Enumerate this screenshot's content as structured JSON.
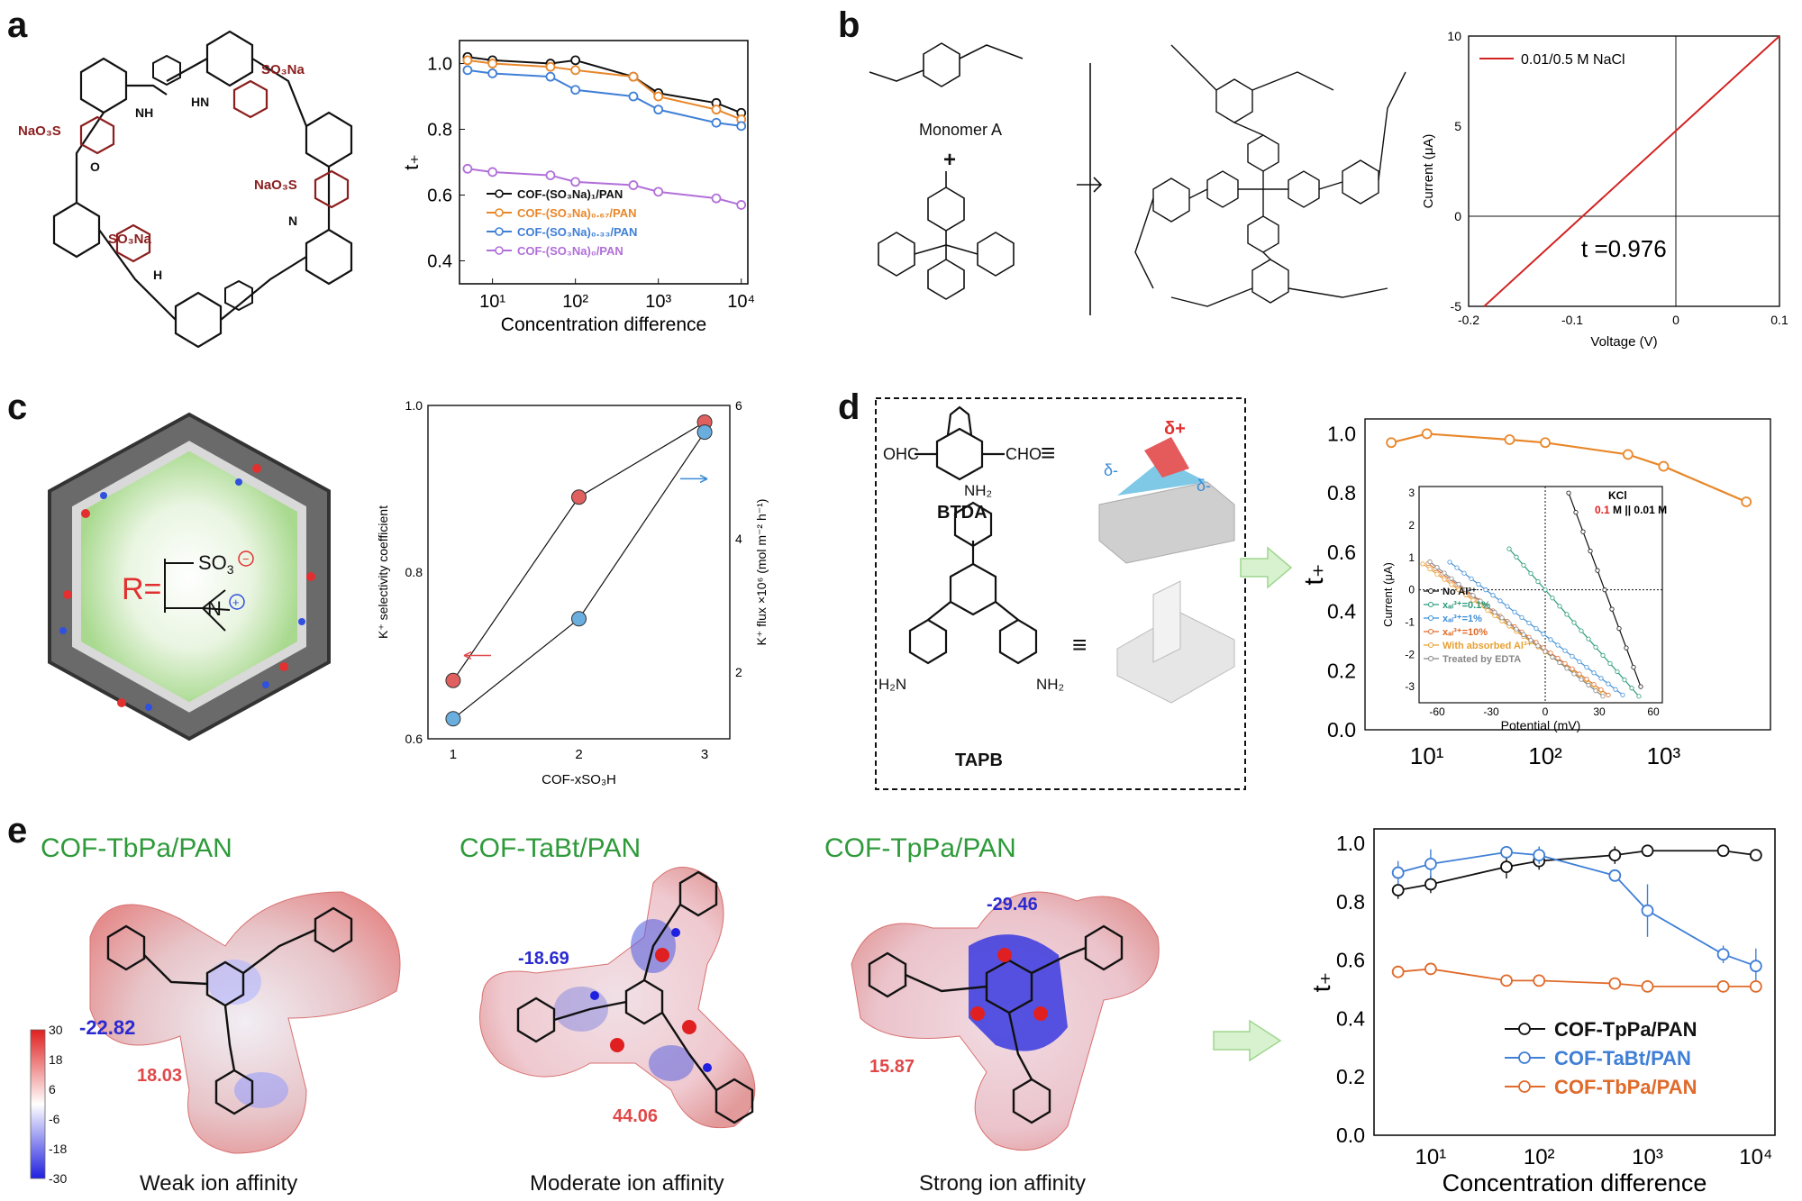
{
  "panels": {
    "a": {
      "letter": "a",
      "chem_labels": {
        "so3na_1": "SO₃Na",
        "so3na_2": "SO₃Na",
        "naso3_1": "NaO₃S",
        "naso3_2": "NaO₃S",
        "nh": "NH",
        "hn": "HN",
        "n": "N",
        "h": "H",
        "o": "O"
      },
      "chart": {
        "ylabel": "t₊",
        "xlabel": "Concentration difference",
        "yticks": [
          "0.4",
          "0.6",
          "0.8",
          "1.0"
        ],
        "xticks": [
          "10¹",
          "10²",
          "10³",
          "10⁴"
        ]
      },
      "legend": [
        "COF-(SO₃Na)₁/PAN",
        "COF-(SO₃Na)₀.₆₇/PAN",
        "COF-(SO₃Na)₀.₃₃/PAN",
        "COF-(SO₃Na)₀/PAN"
      ]
    },
    "b": {
      "letter": "b",
      "monomer_label": "Monomer A",
      "plus": "+",
      "chart": {
        "xlabel": "Voltage (V)",
        "ylabel": "Current (μA)",
        "xticks": [
          "-0.2",
          "-0.1",
          "0",
          "0.1"
        ],
        "yticks": [
          "-5",
          "0",
          "5",
          "10"
        ],
        "legend": "0.01/0.5 M NaCl",
        "annotation": "t  =0.976"
      }
    },
    "c": {
      "letter": "c",
      "r_label": "R=",
      "chart": {
        "xlabel": "COF-xSO₃H",
        "ylabel_left": "K⁺ selectivity coefficient",
        "ylabel_right": "K⁺ flux ×10⁶ (mol m⁻² h⁻¹)",
        "xticks": [
          "1",
          "2",
          "3"
        ],
        "yticks_left": [
          "0.6",
          "0.8",
          "1.0"
        ],
        "yticks_right": [
          "2",
          "4",
          "6"
        ]
      }
    },
    "d": {
      "letter": "d",
      "btda_label": "BTDA",
      "tapb_label": "TAPB",
      "ohc": "OHC",
      "cho": "CHO",
      "nh2": "NH₂",
      "h2n": "H₂N",
      "equiv": "≡",
      "delta_plus": "δ+",
      "delta_minus": "δ-",
      "chart": {
        "ylabel": "t₊",
        "yticks": [
          "0.0",
          "0.2",
          "0.4",
          "0.6",
          "0.8",
          "1.0"
        ],
        "xticks": [
          "10¹",
          "10²",
          "10³"
        ]
      },
      "inset": {
        "xlabel": "Potential (mV)",
        "ylabel": "Current (μA)",
        "xticks": [
          "-60",
          "-30",
          "0",
          "30",
          "60"
        ],
        "yticks": [
          "-3",
          "-2",
          "-1",
          "0",
          "1",
          "2",
          "3"
        ],
        "kcl": "KCl",
        "conc_red": "0.1",
        "conc_rest": " M || 0.01 M",
        "legend": [
          "No Al³⁺",
          "xₐₗ³⁺=0.1%",
          "xₐₗ³⁺=1%",
          "xₐₗ³⁺=10%",
          "With absorbed Al³⁺",
          "Treated by EDTA"
        ]
      }
    },
    "e": {
      "letter": "e",
      "titles": [
        "COF-TbPa/PAN",
        "COF-TaBt/PAN",
        "COF-TpPa/PAN"
      ],
      "captions": [
        "Weak ion affinity",
        "Moderate ion affinity",
        "Strong ion affinity"
      ],
      "values": {
        "v1": "-22.82",
        "v2": "18.03",
        "v3": "-18.69",
        "v4": "44.06",
        "v5": "-29.46",
        "v6": "15.87"
      },
      "colorbar": [
        "30",
        "18",
        "6",
        "-6",
        "-18",
        "-30"
      ],
      "chart": {
        "ylabel": "t₊",
        "xlabel": "Concentration difference",
        "yticks": [
          "0.0",
          "0.2",
          "0.4",
          "0.6",
          "0.8",
          "1.0"
        ],
        "xticks": [
          "10¹",
          "10²",
          "10³",
          "10⁴"
        ],
        "legend": [
          "COF-TpPa/PAN",
          "COF-TaBt/PAN",
          "COF-TbPa/PAN"
        ]
      }
    }
  },
  "chart_data": [
    {
      "type": "line",
      "id": "a",
      "xscale": "log",
      "xlim": [
        4,
        12000
      ],
      "ylim": [
        0.33,
        1.07
      ],
      "xlabel": "Concentration difference",
      "ylabel": "t₊",
      "x": [
        5,
        10,
        50,
        100,
        500,
        1000,
        5000,
        10000
      ],
      "series": [
        {
          "name": "COF-(SO₃Na)₁/PAN",
          "color": "#111111",
          "values": [
            1.02,
            1.01,
            1.0,
            1.01,
            0.96,
            0.91,
            0.88,
            0.85
          ]
        },
        {
          "name": "COF-(SO₃Na)₀.₆₇/PAN",
          "color": "#e8872a",
          "values": [
            1.01,
            1.0,
            0.99,
            0.98,
            0.96,
            0.9,
            0.86,
            0.83
          ]
        },
        {
          "name": "COF-(SO₃Na)₀.₃₃/PAN",
          "color": "#3f7fd6",
          "values": [
            0.98,
            0.97,
            0.96,
            0.92,
            0.9,
            0.86,
            0.82,
            0.81
          ]
        },
        {
          "name": "COF-(SO₃Na)₀/PAN",
          "color": "#b16fd8",
          "values": [
            0.68,
            0.67,
            0.66,
            0.64,
            0.63,
            0.61,
            0.59,
            0.57
          ]
        }
      ]
    },
    {
      "type": "line",
      "id": "b",
      "xlim": [
        -0.2,
        0.1
      ],
      "ylim": [
        -5,
        10
      ],
      "xlabel": "Voltage (V)",
      "ylabel": "Current (μA)",
      "series": [
        {
          "name": "0.01/0.5 M NaCl",
          "color": "#d32222",
          "x": [
            -0.185,
            0.1
          ],
          "y": [
            -5,
            10
          ]
        }
      ]
    },
    {
      "type": "scatter",
      "id": "c",
      "xlim": [
        0.8,
        3.2
      ],
      "ylim_left": [
        0.6,
        1.0
      ],
      "ylim_right": [
        1.0,
        6.0
      ],
      "xlabel": "COF-xSO₃H",
      "series": [
        {
          "name": "K⁺ selectivity coefficient",
          "axis": "left",
          "color": "#e06060",
          "x": [
            1,
            2,
            3
          ],
          "y": [
            0.67,
            0.89,
            0.98
          ]
        },
        {
          "name": "K⁺ flux",
          "axis": "right",
          "color": "#6aaede",
          "x": [
            1,
            2,
            3
          ],
          "y": [
            1.3,
            2.8,
            5.6
          ]
        }
      ]
    },
    {
      "type": "line",
      "id": "d",
      "xscale": "log",
      "xlim": [
        3,
        8000
      ],
      "ylim": [
        0.0,
        1.05
      ],
      "ylabel": "t₊",
      "series": [
        {
          "name": "",
          "color": "#e8872a",
          "x": [
            5,
            10,
            50,
            100,
            500,
            1000,
            5000
          ],
          "y": [
            0.97,
            1.0,
            0.98,
            0.97,
            0.93,
            0.89,
            0.77
          ]
        }
      ]
    },
    {
      "type": "line",
      "id": "d-inset",
      "xlim": [
        -70,
        65
      ],
      "ylim": [
        -3.5,
        3.2
      ],
      "xlabel": "Potential (mV)",
      "ylabel": "Current (μA)",
      "series": [
        {
          "name": "No Al³⁺",
          "color": "#111111",
          "x0": 33,
          "x1": 55
        },
        {
          "name": "xₐₗ³⁺=0.1%",
          "color": "#2a9a7a",
          "x0": 0,
          "x1": 52
        },
        {
          "name": "xₐₗ³⁺=1%",
          "color": "#3f8fd6",
          "x0": -33,
          "x1": 44
        },
        {
          "name": "xₐₗ³⁺=10%",
          "color": "#e06a2a",
          "x0": -45,
          "x1": 36
        },
        {
          "name": "With absorbed Al³⁺",
          "color": "#e8a030",
          "x0": -48,
          "x1": 34
        },
        {
          "name": "Treated by EDTA",
          "color": "#888888",
          "x0": -44,
          "x1": 32
        }
      ]
    },
    {
      "type": "line",
      "id": "e",
      "xscale": "log",
      "xlim": [
        3,
        15000
      ],
      "ylim": [
        0.0,
        1.05
      ],
      "xlabel": "Concentration difference",
      "ylabel": "t₊",
      "x": [
        5,
        10,
        50,
        100,
        500,
        1000,
        5000,
        10000
      ],
      "series": [
        {
          "name": "COF-TpPa/PAN",
          "color": "#111111",
          "values": [
            0.84,
            0.86,
            0.92,
            0.94,
            0.96,
            0.975,
            0.975,
            0.96
          ],
          "err": [
            0.03,
            0.03,
            0.04,
            0.03,
            0.03,
            0.01,
            0.01,
            0.02
          ]
        },
        {
          "name": "COF-TaBt/PAN",
          "color": "#3f7fd6",
          "values": [
            0.9,
            0.93,
            0.97,
            0.96,
            0.89,
            0.77,
            0.62,
            0.58
          ],
          "err": [
            0.04,
            0.05,
            0.02,
            0.03,
            0.02,
            0.09,
            0.03,
            0.06
          ]
        },
        {
          "name": "COF-TbPa/PAN",
          "color": "#e06a2a",
          "values": [
            0.56,
            0.57,
            0.53,
            0.53,
            0.52,
            0.51,
            0.51,
            0.51
          ],
          "err": [
            0.01,
            0.01,
            0.01,
            0.01,
            0.01,
            0.01,
            0.01,
            0.01
          ]
        }
      ]
    }
  ]
}
